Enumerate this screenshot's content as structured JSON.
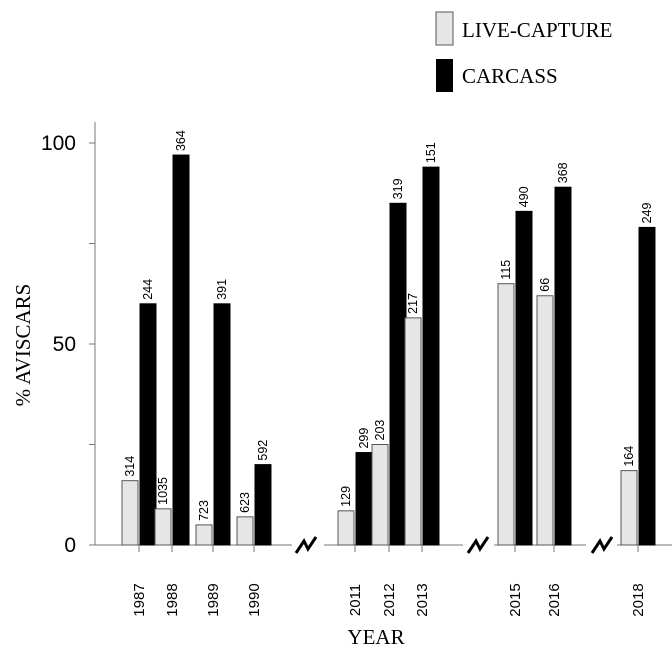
{
  "chart_data": {
    "type": "bar",
    "ylabel": "% AVISCARS",
    "xlabel": "YEAR",
    "ylim": [
      0,
      105
    ],
    "yticks": [
      0,
      50,
      100
    ],
    "grid": false,
    "legend_position": "top-right",
    "axis_break_after": [
      "1990",
      "2013",
      "2016"
    ],
    "categories": [
      "1987",
      "1988",
      "1989",
      "1990",
      "2011",
      "2012",
      "2013",
      "2015",
      "2016",
      "2018"
    ],
    "series": [
      {
        "name": "LIVE-CAPTURE",
        "color": "#e6e6e6",
        "values": [
          16,
          9,
          5,
          7,
          8.5,
          25,
          56.5,
          65,
          62,
          18.5
        ],
        "labels": [
          "314",
          "1035",
          "723",
          "623",
          "129",
          "203",
          "217",
          "115",
          "66",
          "164"
        ]
      },
      {
        "name": "CARCASS",
        "color": "#000000",
        "values": [
          60,
          97,
          60,
          20,
          23,
          85,
          94,
          83,
          89,
          79
        ],
        "labels": [
          "244",
          "364",
          "391",
          "592",
          "299",
          "319",
          "151",
          "490",
          "368",
          "249"
        ]
      }
    ]
  }
}
